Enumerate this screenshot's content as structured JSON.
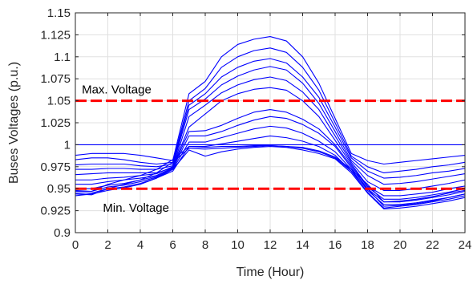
{
  "chart_data": {
    "type": "line",
    "title": "",
    "xlabel": "Time (Hour)",
    "ylabel": "Buses Voltages (p.u.)",
    "xlim": [
      0,
      24
    ],
    "ylim": [
      0.9,
      1.15
    ],
    "grid": true,
    "xticks": [
      0,
      2,
      4,
      6,
      8,
      10,
      12,
      14,
      16,
      18,
      20,
      22,
      24
    ],
    "yticks": [
      0.9,
      0.925,
      0.95,
      0.975,
      1,
      1.025,
      1.05,
      1.075,
      1.1,
      1.125,
      1.15
    ],
    "ytick_labels": [
      "0.9",
      "0.925",
      "0.95",
      "0.975",
      "1",
      "1.025",
      "1.05",
      "1.075",
      "1.1",
      "1.125",
      "1.15"
    ],
    "series_color": "#0000ff",
    "limit_color": "#ff0000",
    "x": [
      0,
      1,
      2,
      3,
      4,
      5,
      6,
      7,
      8,
      9,
      10,
      11,
      12,
      13,
      14,
      15,
      16,
      17,
      18,
      19,
      20,
      21,
      22,
      23,
      24
    ],
    "series": [
      {
        "values": [
          1.0,
          1.0,
          1.0,
          1.0,
          1.0,
          1.0,
          1.0,
          1.0,
          1.0,
          1.0,
          1.0,
          1.0,
          1.0,
          1.0,
          1.0,
          1.0,
          1.0,
          1.0,
          1.0,
          1.0,
          1.0,
          1.0,
          1.0,
          1.0,
          1.0
        ]
      },
      {
        "values": [
          0.988,
          0.99,
          0.99,
          0.99,
          0.988,
          0.985,
          0.982,
          1.058,
          1.072,
          1.1,
          1.114,
          1.12,
          1.123,
          1.118,
          1.1,
          1.07,
          1.03,
          0.99,
          0.982,
          0.978,
          0.98,
          0.982,
          0.984,
          0.986,
          0.988
        ]
      },
      {
        "values": [
          0.983,
          0.985,
          0.985,
          0.983,
          0.98,
          0.978,
          0.98,
          1.05,
          1.064,
          1.088,
          1.1,
          1.107,
          1.11,
          1.105,
          1.088,
          1.062,
          1.025,
          0.987,
          0.975,
          0.968,
          0.97,
          0.972,
          0.975,
          0.977,
          0.98
        ]
      },
      {
        "values": [
          0.977,
          0.978,
          0.978,
          0.978,
          0.976,
          0.975,
          0.978,
          1.045,
          1.058,
          1.077,
          1.088,
          1.095,
          1.098,
          1.093,
          1.077,
          1.054,
          1.02,
          0.985,
          0.97,
          0.962,
          0.963,
          0.965,
          0.968,
          0.97,
          0.973
        ]
      },
      {
        "values": [
          0.972,
          0.972,
          0.973,
          0.973,
          0.972,
          0.972,
          0.976,
          1.04,
          1.052,
          1.068,
          1.078,
          1.085,
          1.089,
          1.085,
          1.07,
          1.047,
          1.015,
          0.982,
          0.965,
          0.955,
          0.956,
          0.958,
          0.961,
          0.964,
          0.967
        ]
      },
      {
        "values": [
          0.966,
          0.967,
          0.968,
          0.968,
          0.968,
          0.968,
          0.974,
          1.032,
          1.045,
          1.059,
          1.068,
          1.074,
          1.077,
          1.073,
          1.06,
          1.04,
          1.01,
          0.98,
          0.958,
          0.948,
          0.948,
          0.95,
          0.953,
          0.956,
          0.96
        ]
      },
      {
        "values": [
          0.96,
          0.96,
          0.962,
          0.963,
          0.965,
          0.967,
          0.975,
          1.02,
          1.035,
          1.05,
          1.058,
          1.063,
          1.065,
          1.062,
          1.05,
          1.032,
          1.005,
          0.978,
          0.953,
          0.942,
          0.942,
          0.944,
          0.946,
          0.95,
          0.953
        ]
      },
      {
        "values": [
          0.955,
          0.955,
          0.958,
          0.96,
          0.962,
          0.965,
          0.974,
          1.015,
          1.016,
          1.022,
          1.03,
          1.037,
          1.04,
          1.037,
          1.029,
          1.018,
          1.0,
          0.976,
          0.952,
          0.938,
          0.938,
          0.94,
          0.943,
          0.946,
          0.95
        ]
      },
      {
        "values": [
          0.95,
          0.95,
          0.954,
          0.956,
          0.96,
          0.964,
          0.973,
          1.01,
          1.01,
          1.015,
          1.022,
          1.028,
          1.032,
          1.03,
          1.023,
          1.013,
          0.998,
          0.974,
          0.95,
          0.935,
          0.935,
          0.937,
          0.94,
          0.943,
          0.947
        ]
      },
      {
        "values": [
          0.947,
          0.947,
          0.952,
          0.954,
          0.958,
          0.963,
          0.972,
          1.003,
          1.003,
          1.008,
          1.013,
          1.018,
          1.021,
          1.019,
          1.013,
          1.004,
          0.992,
          0.972,
          0.948,
          0.932,
          0.932,
          0.934,
          0.937,
          0.94,
          0.944
        ]
      },
      {
        "values": [
          0.945,
          0.945,
          0.95,
          0.952,
          0.956,
          0.962,
          0.97,
          0.998,
          0.998,
          1.001,
          1.004,
          1.007,
          1.01,
          1.008,
          1.004,
          0.998,
          0.988,
          0.97,
          0.946,
          0.928,
          0.93,
          0.932,
          0.935,
          0.938,
          0.942
        ]
      },
      {
        "values": [
          0.942,
          0.944,
          0.948,
          0.951,
          0.955,
          0.962,
          0.972,
          0.994,
          0.987,
          0.992,
          0.995,
          0.997,
          0.998,
          0.997,
          0.994,
          0.99,
          0.984,
          0.968,
          0.945,
          0.927,
          0.928,
          0.93,
          0.933,
          0.936,
          0.94
        ]
      },
      {
        "values": [
          0.944,
          0.943,
          0.95,
          0.955,
          0.96,
          0.968,
          0.98,
          0.996,
          0.995,
          0.996,
          0.997,
          0.998,
          0.999,
          0.998,
          0.996,
          0.992,
          0.985,
          0.97,
          0.95,
          0.93,
          0.931,
          0.933,
          0.936,
          0.94,
          0.944
        ]
      },
      {
        "values": [
          0.948,
          0.947,
          0.955,
          0.96,
          0.965,
          0.972,
          0.983,
          0.998,
          0.997,
          0.998,
          0.998,
          0.999,
          0.999,
          0.998,
          0.997,
          0.993,
          0.986,
          0.972,
          0.955,
          0.935,
          0.936,
          0.938,
          0.941,
          0.945,
          0.948
        ]
      }
    ],
    "limit_lines": [
      {
        "y": 1.05,
        "label": "Max. Voltage"
      },
      {
        "y": 0.95,
        "label": "Min. Voltage"
      }
    ]
  }
}
